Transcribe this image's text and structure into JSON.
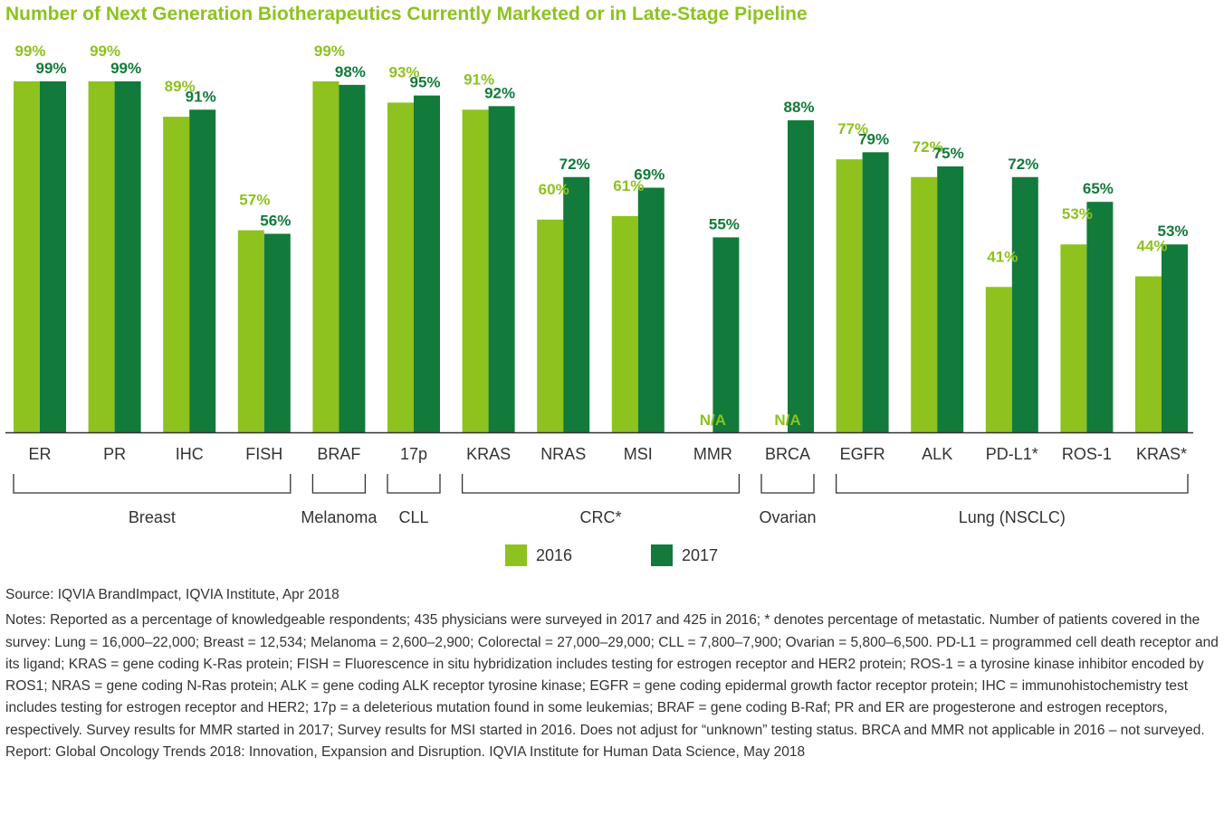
{
  "title": "Number of Next Generation Biotherapeutics Currently Marketed or in Late-Stage Pipeline",
  "colors": {
    "s2016": "#8dc21f",
    "s2017": "#127a3a",
    "label2016": "#8dc21f",
    "label2017": "#127a3a"
  },
  "legend": [
    {
      "label": "2016",
      "color": "#8dc21f"
    },
    {
      "label": "2017",
      "color": "#127a3a"
    }
  ],
  "chart_data": {
    "type": "bar",
    "title": "Number of Next Generation Biotherapeutics Currently Marketed or in Late-Stage Pipeline",
    "xlabel": "",
    "ylabel": "",
    "ylim": [
      0,
      100
    ],
    "categories": [
      "ER",
      "PR",
      "IHC",
      "FISH",
      "BRAF",
      "17p",
      "KRAS",
      "NRAS",
      "MSI",
      "MMR",
      "BRCA",
      "EGFR",
      "ALK",
      "PD-L1*",
      "ROS-1",
      "KRAS*"
    ],
    "series": [
      {
        "name": "2016",
        "values": [
          99,
          99,
          89,
          57,
          99,
          93,
          91,
          60,
          61,
          null,
          null,
          77,
          72,
          41,
          53,
          44
        ],
        "labels": [
          "99%",
          "99%",
          "89%",
          "57%",
          "99%",
          "93%",
          "91%",
          "60%",
          "61%",
          "N/A",
          "N/A",
          "77%",
          "72%",
          "41%",
          "53%",
          "44%"
        ]
      },
      {
        "name": "2017",
        "values": [
          99,
          99,
          91,
          56,
          98,
          95,
          92,
          72,
          69,
          55,
          88,
          79,
          75,
          72,
          65,
          53
        ],
        "labels": [
          "99%",
          "99%",
          "91%",
          "56%",
          "98%",
          "95%",
          "92%",
          "72%",
          "69%",
          "55%",
          "88%",
          "79%",
          "75%",
          "72%",
          "65%",
          "53%"
        ]
      }
    ],
    "groups": [
      {
        "name": "Breast",
        "start": 0,
        "end": 3
      },
      {
        "name": "Melanoma",
        "start": 4,
        "end": 4
      },
      {
        "name": "CLL",
        "start": 5,
        "end": 5
      },
      {
        "name": "CRC*",
        "start": 6,
        "end": 9
      },
      {
        "name": "Ovarian",
        "start": 10,
        "end": 10
      },
      {
        "name": "Lung (NSCLC)",
        "start": 11,
        "end": 15
      }
    ],
    "legend_position": "bottom",
    "grid": false
  },
  "notes": {
    "source": "Source: IQVIA BrandImpact, IQVIA Institute, Apr 2018",
    "notes": "Notes: Reported as a percentage of knowledgeable respondents; 435 physicians were surveyed in 2017 and 425 in 2016; * denotes percentage of metastatic. Number of patients covered in the survey: Lung = 16,000–22,000; Breast = 12,534; Melanoma = 2,600–2,900; Colorectal = 27,000–29,000; CLL = 7,800–7,900; Ovarian = 5,800–6,500. PD-L1 = programmed cell death receptor and its ligand; KRAS = gene coding K-Ras protein; FISH = Fluorescence in situ hybridization includes testing for estrogen receptor and HER2 protein; ROS-1 = a tyrosine kinase inhibitor encoded by ROS1; NRAS = gene coding N-Ras protein; ALK = gene coding ALK receptor tyrosine kinase; EGFR = gene coding epidermal growth factor receptor protein; IHC = immunohistochemistry test includes testing for estrogen receptor and HER2; 17p = a deleterious mutation found in some leukemias; BRAF = gene coding B-Raf; PR and ER are progesterone and estrogen receptors, respectively. Survey results for MMR started in 2017; Survey results for MSI started in 2016. Does not adjust for “unknown” testing status. BRCA and MMR not applicable in 2016 – not surveyed.",
    "report": "Report: Global Oncology Trends 2018: Innovation, Expansion and Disruption. IQVIA Institute for Human Data Science, May 2018"
  }
}
